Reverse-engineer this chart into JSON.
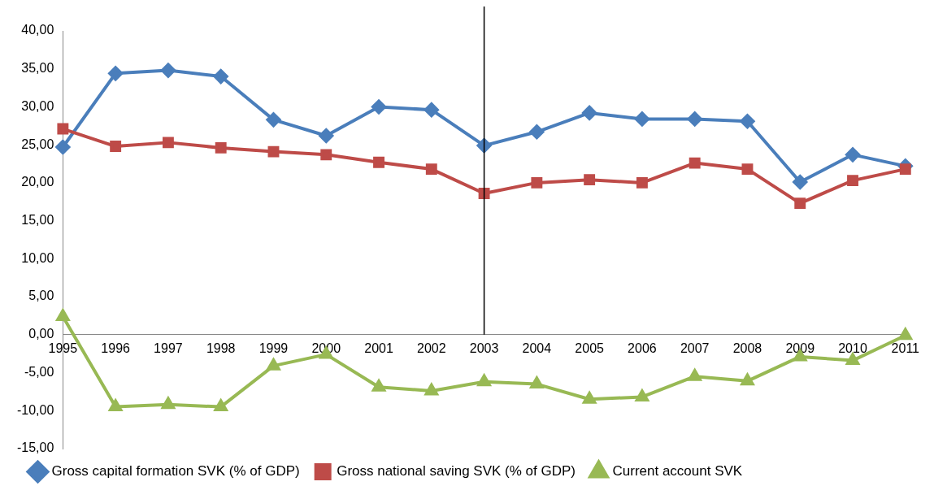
{
  "chart_data": {
    "type": "line",
    "categories": [
      "1995",
      "1996",
      "1997",
      "1998",
      "1999",
      "2000",
      "2001",
      "2002",
      "2003",
      "2004",
      "2005",
      "2006",
      "2007",
      "2008",
      "2009",
      "2010",
      "2011"
    ],
    "series": [
      {
        "name": "Gross capital formation SVK (% of GDP)",
        "color": "#4a7ebb",
        "marker": "diamond",
        "values": [
          24.7,
          34.4,
          34.8,
          34.0,
          28.3,
          26.2,
          30.0,
          29.6,
          24.9,
          26.7,
          29.2,
          28.4,
          28.4,
          28.1,
          20.1,
          23.7,
          22.2
        ]
      },
      {
        "name": "Gross national saving SVK (% of GDP)",
        "color": "#be4b48",
        "marker": "square",
        "values": [
          27.1,
          24.8,
          25.3,
          24.6,
          24.1,
          23.7,
          22.7,
          21.8,
          18.6,
          20.0,
          20.4,
          20.0,
          22.6,
          21.8,
          17.3,
          20.3,
          21.8
        ]
      },
      {
        "name": "Current account SVK",
        "color": "#98b954",
        "marker": "triangle",
        "values": [
          2.4,
          -9.5,
          -9.2,
          -9.5,
          -4.1,
          -2.6,
          -6.9,
          -7.4,
          -6.2,
          -6.5,
          -8.5,
          -8.2,
          -5.5,
          -6.1,
          -2.9,
          -3.4,
          -0.1
        ]
      }
    ],
    "ylim": [
      -15,
      40
    ],
    "yticks": [
      {
        "value": -15,
        "label": "-15,00"
      },
      {
        "value": -10,
        "label": "-10,00"
      },
      {
        "value": -5,
        "label": "-5,00"
      },
      {
        "value": 0,
        "label": "0,00"
      },
      {
        "value": 5,
        "label": "5,00"
      },
      {
        "value": 10,
        "label": "10,00"
      },
      {
        "value": 15,
        "label": "15,00"
      },
      {
        "value": 20,
        "label": "20,00"
      },
      {
        "value": 25,
        "label": "25,00"
      },
      {
        "value": 30,
        "label": "30,00"
      },
      {
        "value": 35,
        "label": "35,00"
      },
      {
        "value": 40,
        "label": "40,00"
      }
    ],
    "ref_lines": [
      {
        "axis": "x",
        "value": "2003",
        "color": "#000000"
      }
    ],
    "legend": "bottom",
    "grid": false,
    "line_style": "solid"
  }
}
